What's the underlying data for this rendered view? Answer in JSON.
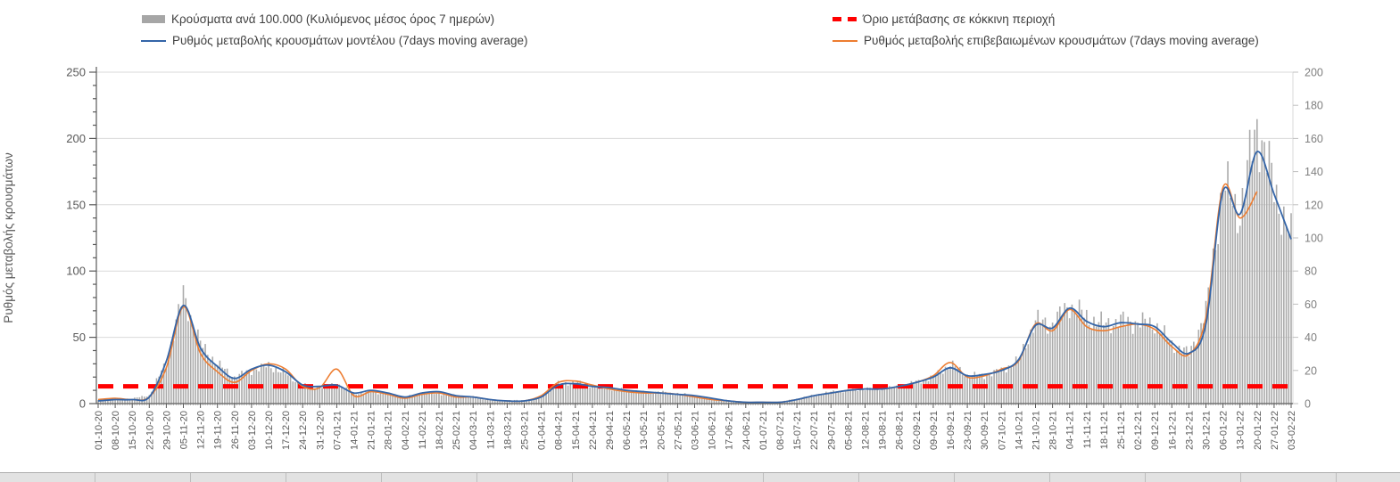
{
  "legend": {
    "items": [
      {
        "label": "Κρούσματα ανά 100.000 (Κυλιόμενος μέσος όρος 7 ημερών)",
        "marker": "gray-bar-swatch"
      },
      {
        "label": "Ρυθμός μεταβολής κρουσμάτων μοντέλου (7days moving average)",
        "marker": "blue-line-swatch"
      },
      {
        "label": "Όριο μετάβασης σε κόκκινη περιοχή",
        "marker": "red-dashed-swatch"
      },
      {
        "label": "Ρυθμός μεταβολής επιβεβαιωμένων κρουσμάτων (7days moving average)",
        "marker": "orange-line-swatch"
      }
    ]
  },
  "colors": {
    "bar": "#ababab",
    "model_line": "#3465a8",
    "confirmed_line": "#ed7d31",
    "threshold": "#ff0000",
    "grid": "#d9d9d9",
    "axis": "#595959",
    "axis_light": "#bfbfbf",
    "tick_text": "#595959"
  },
  "chart_data": {
    "type": "bar",
    "subtype": "combo bar+line, dual y-axis, daily bars smoothed 7-day",
    "title": "",
    "y_axis_left": {
      "title": "Ρυθμός μεταβολής κρουσμάτων",
      "min": 0,
      "max": 250,
      "tick_step": 50,
      "minor_step": 10,
      "tick_labels": [
        "0",
        "50",
        "100",
        "150",
        "200",
        "250"
      ]
    },
    "y_axis_right": {
      "title": "",
      "min": 0,
      "max": 200,
      "tick_step": 20,
      "tick_labels": [
        "0",
        "20",
        "40",
        "60",
        "80",
        "100",
        "120",
        "140",
        "160",
        "180",
        "200"
      ]
    },
    "x_labels": [
      "01-10-20",
      "08-10-20",
      "15-10-20",
      "22-10-20",
      "29-10-20",
      "05-11-20",
      "12-11-20",
      "19-11-20",
      "26-11-20",
      "03-12-20",
      "10-12-20",
      "17-12-20",
      "24-12-20",
      "31-12-20",
      "07-01-21",
      "14-01-21",
      "21-01-21",
      "28-01-21",
      "04-02-21",
      "11-02-21",
      "18-02-21",
      "25-02-21",
      "04-03-21",
      "11-03-21",
      "18-03-21",
      "25-03-21",
      "01-04-21",
      "08-04-21",
      "15-04-21",
      "22-04-21",
      "29-04-21",
      "06-05-21",
      "13-05-21",
      "20-05-21",
      "27-05-21",
      "03-06-21",
      "10-06-21",
      "17-06-21",
      "24-06-21",
      "01-07-21",
      "08-07-21",
      "15-07-21",
      "22-07-21",
      "29-07-21",
      "05-08-21",
      "12-08-21",
      "19-08-21",
      "26-08-21",
      "02-09-21",
      "09-09-21",
      "16-09-21",
      "23-09-21",
      "30-09-21",
      "07-10-21",
      "14-10-21",
      "21-10-21",
      "28-10-21",
      "04-11-21",
      "11-11-21",
      "18-11-21",
      "25-11-21",
      "02-12-21",
      "09-12-21",
      "16-12-21",
      "23-12-21",
      "30-12-21",
      "06-01-22",
      "13-01-22",
      "20-01-22",
      "27-01-22",
      "03-02-22"
    ],
    "series": [
      {
        "name": "Κρούσματα ανά 100.000 (Κυλιόμενος μέσος όρος 7 ημερών)",
        "type": "bar",
        "axis": "right",
        "values": [
          2,
          3,
          3,
          5,
          25,
          66,
          36,
          24,
          16,
          20,
          23,
          18,
          11,
          10,
          12,
          6,
          7,
          6,
          4,
          6,
          6,
          5,
          4,
          2,
          2,
          2,
          4,
          12,
          13,
          11,
          9,
          8,
          7,
          7,
          6,
          5,
          3,
          2,
          1,
          1,
          1,
          3,
          5,
          7,
          8,
          9,
          9,
          10,
          13,
          16,
          24,
          17,
          17,
          20,
          26,
          50,
          48,
          60,
          52,
          48,
          50,
          49,
          48,
          36,
          30,
          55,
          132,
          115,
          170,
          130,
          100
        ]
      },
      {
        "name": "Ρυθμός μεταβολής κρουσμάτων μοντέλου (7days moving average)",
        "type": "line",
        "axis": "left",
        "values": [
          2,
          3,
          3,
          5,
          32,
          74,
          42,
          28,
          19,
          26,
          29,
          24,
          14,
          13,
          14,
          8,
          10,
          8,
          5,
          8,
          9,
          6,
          5,
          3,
          2,
          2,
          5,
          14,
          15,
          13,
          12,
          10,
          9,
          8,
          7,
          6,
          4,
          2,
          1,
          1,
          1,
          3,
          6,
          8,
          10,
          11,
          11,
          13,
          16,
          20,
          27,
          21,
          22,
          25,
          33,
          59,
          57,
          72,
          62,
          58,
          61,
          60,
          58,
          46,
          38,
          60,
          160,
          143,
          190,
          158,
          124
        ]
      },
      {
        "name": "Ρυθμός μεταβολής επιβεβαιωμένων κρουσμάτων (7days moving average)",
        "type": "line",
        "axis": "left",
        "values": [
          3,
          4,
          3,
          5,
          27,
          73,
          38,
          24,
          16,
          25,
          30,
          26,
          13,
          12,
          26,
          6,
          9,
          7,
          4,
          7,
          8,
          5,
          5,
          3,
          2,
          2,
          6,
          16,
          17,
          14,
          11,
          9,
          8,
          8,
          7,
          5,
          3,
          2,
          1,
          1,
          1,
          3,
          6,
          8,
          10,
          11,
          11,
          13,
          16,
          21,
          31,
          20,
          21,
          26,
          32,
          60,
          55,
          71,
          58,
          55,
          58,
          60,
          56,
          43,
          37,
          65,
          163,
          140,
          160,
          null,
          null
        ]
      }
    ],
    "threshold": {
      "label": "Όριο μετάβασης σε κόκκινη περιοχή",
      "value_left_axis": 13
    },
    "layout_hints": {
      "grid": "horizontal major only",
      "legend_position": "top, two columns",
      "x_label_rotation": -90
    }
  }
}
